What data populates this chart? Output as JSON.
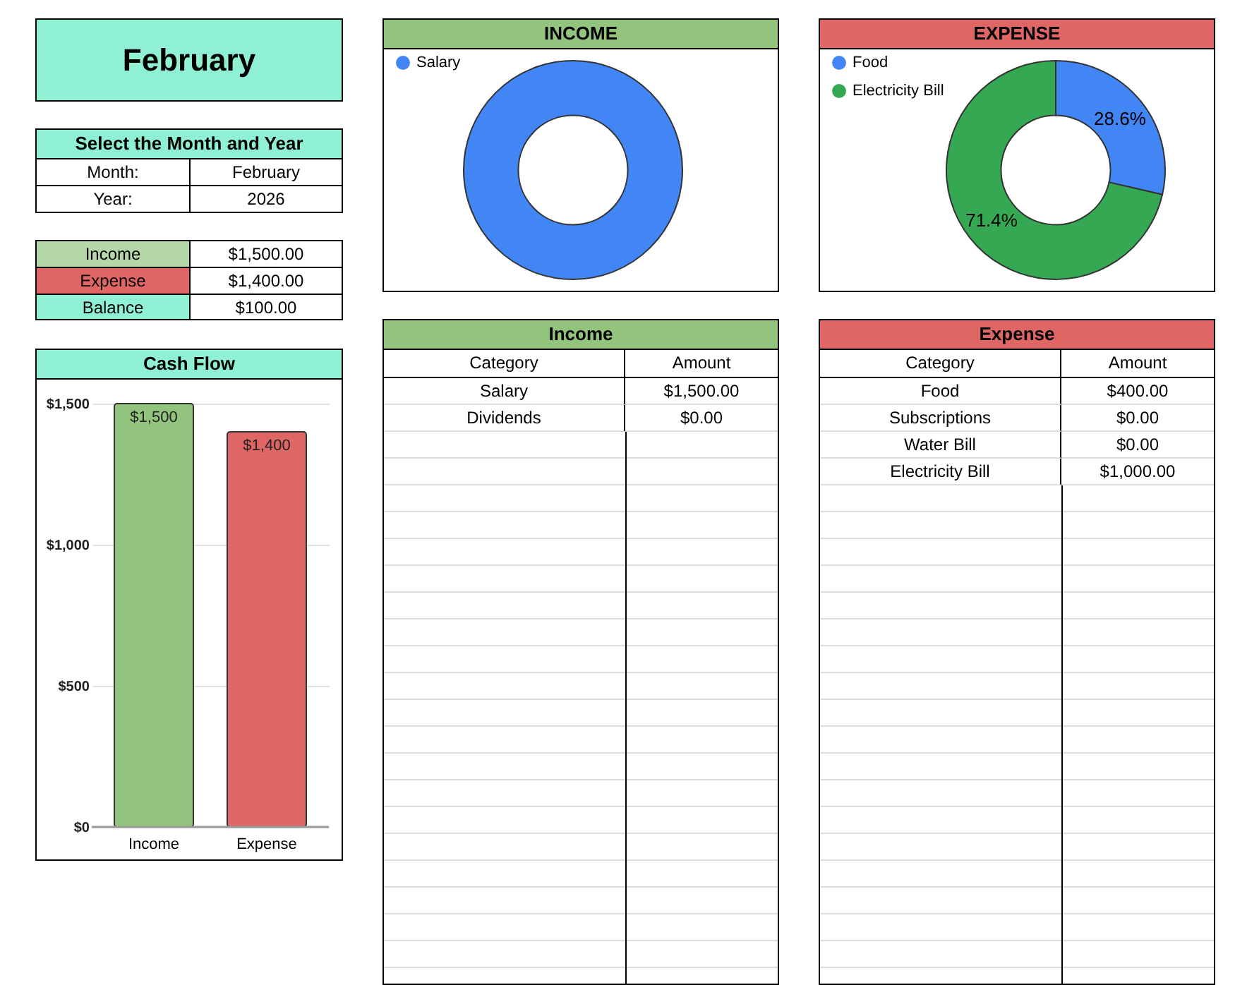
{
  "chart_data": [
    {
      "type": "other",
      "title": "February"
    },
    {
      "type": "other",
      "title": "Select the Month and Year",
      "annotations": [
        "Month:",
        "February",
        "Year:",
        "2026"
      ]
    },
    {
      "type": "other",
      "annotations": [
        "Income",
        "$1,500.00",
        "Expense",
        "$1,400.00",
        "Balance",
        "$100.00"
      ]
    },
    {
      "type": "bar",
      "title": "Cash Flow",
      "categories": [
        "Income",
        "Expense"
      ],
      "values": [
        1500,
        1400
      ],
      "colors": [
        "#93c47d",
        "#e06666"
      ],
      "ylim": [
        0,
        1500
      ],
      "yticks": [
        {
          "value": 0,
          "label": "$0"
        },
        {
          "value": 500,
          "label": "$500"
        },
        {
          "value": 1000,
          "label": "$1,000"
        },
        {
          "value": 1500,
          "label": "$1,500"
        }
      ],
      "grid": "y",
      "value_labels": [
        "$1,500",
        "$1,400"
      ]
    },
    {
      "type": "donut",
      "title": "INCOME",
      "categories": [
        "Salary"
      ],
      "values": [
        100
      ],
      "colors": [
        "#4285f4"
      ],
      "legend": "top left"
    },
    {
      "type": "donut",
      "title": "EXPENSE",
      "categories": [
        "Food",
        "Electricity Bill"
      ],
      "values": [
        28.6,
        71.4
      ],
      "colors": [
        "#4285f4",
        "#34a853"
      ],
      "legend": "top left",
      "value_labels": [
        "28.6%",
        "71.4%"
      ]
    },
    {
      "type": "other",
      "title": "Income",
      "annotations": [
        "Category",
        "Amount",
        "Salary",
        "$1,500.00",
        "Dividends",
        "$0.00"
      ]
    },
    {
      "type": "other",
      "title": "Expense",
      "annotations": [
        "Category",
        "Amount",
        "Food",
        "$400.00",
        "Subscriptions",
        "$0.00",
        "Water Bill",
        "$0.00",
        "Electricity Bill",
        "$1,000.00"
      ]
    }
  ]
}
